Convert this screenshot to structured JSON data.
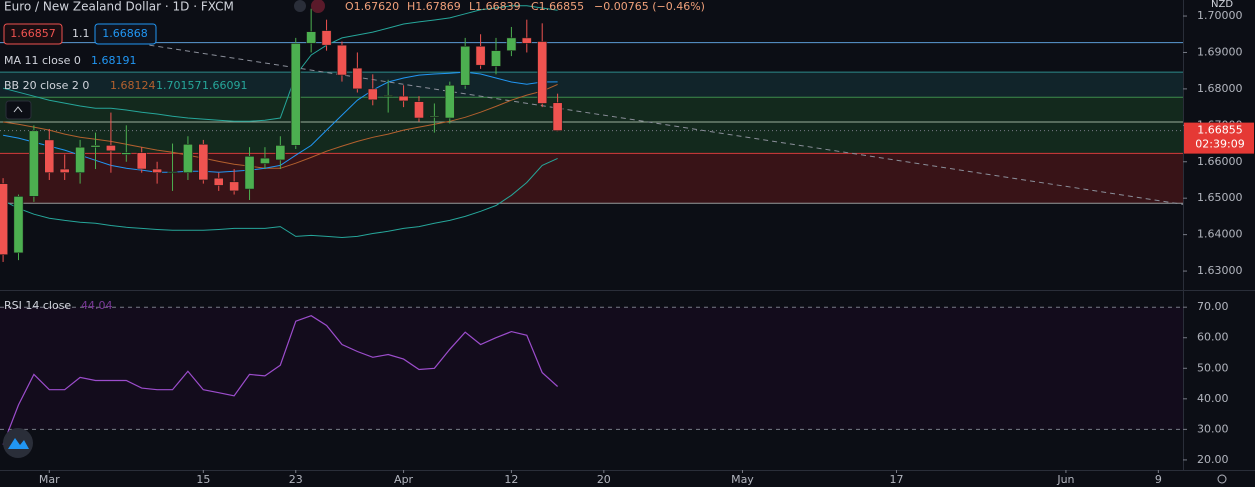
{
  "chart_data": {
    "type": "candlestick",
    "title": "Euro / New Zealand Dollar · 1D · FXCM",
    "ohlc_header": [
      "O1.67620",
      "H1.67869",
      "L1.66839",
      "C1.66855",
      "−0.00765 (−0.46%)"
    ],
    "bid": "1.66857",
    "spread": "1.1",
    "ask": "1.66868",
    "currency": "NZD",
    "last_price": {
      "value": 1.66855,
      "label": "1.66855"
    },
    "countdown": "02:39:09",
    "up_color": "#4caf50",
    "down_color": "#ef5350",
    "open": [
      1.654,
      1.635,
      1.6505,
      1.666,
      1.658,
      1.657,
      1.664,
      1.6645,
      1.662,
      1.6625,
      1.658,
      1.657,
      1.657,
      1.6648,
      1.6555,
      1.6545,
      1.6525,
      1.6595,
      1.6605,
      1.6645,
      1.6925,
      1.696,
      1.692,
      1.6857,
      1.68,
      1.678,
      1.678,
      1.6765,
      1.6722,
      1.672,
      1.681,
      1.6917,
      1.6862,
      1.6905,
      1.694,
      1.693,
      1.6762
    ],
    "high": [
      1.6555,
      1.651,
      1.67,
      1.669,
      1.662,
      1.666,
      1.668,
      1.6735,
      1.67,
      1.664,
      1.66,
      1.665,
      1.667,
      1.666,
      1.657,
      1.658,
      1.664,
      1.664,
      1.667,
      1.694,
      1.702,
      1.699,
      1.693,
      1.69,
      1.684,
      1.6825,
      1.681,
      1.678,
      1.676,
      1.682,
      1.694,
      1.695,
      1.694,
      1.697,
      1.699,
      1.698,
      1.67869
    ],
    "low": [
      1.6325,
      1.633,
      1.649,
      1.655,
      1.655,
      1.654,
      1.658,
      1.657,
      1.66,
      1.657,
      1.654,
      1.652,
      1.655,
      1.654,
      1.652,
      1.651,
      1.6495,
      1.658,
      1.658,
      1.6635,
      1.69,
      1.6905,
      1.682,
      1.679,
      1.6755,
      1.6735,
      1.675,
      1.671,
      1.668,
      1.6705,
      1.68,
      1.6855,
      1.684,
      1.689,
      1.69,
      1.675,
      1.66839
    ],
    "close": [
      1.6345,
      1.6505,
      1.6685,
      1.657,
      1.657,
      1.664,
      1.6645,
      1.663,
      1.6625,
      1.658,
      1.657,
      1.6572,
      1.6648,
      1.655,
      1.6535,
      1.652,
      1.6615,
      1.661,
      1.6645,
      1.6925,
      1.6957,
      1.692,
      1.6838,
      1.68,
      1.677,
      1.6782,
      1.6767,
      1.672,
      1.6725,
      1.681,
      1.6917,
      1.6865,
      1.6905,
      1.694,
      1.6925,
      1.676,
      1.66855
    ],
    "ylim": [
      1.6248,
      1.7044
    ],
    "yticks": [
      {
        "value": 1.7,
        "label": "1.70000"
      },
      {
        "value": 1.69,
        "label": "1.69000"
      },
      {
        "value": 1.68,
        "label": "1.68000"
      },
      {
        "value": 1.67,
        "label": "1.67000"
      },
      {
        "value": 1.66,
        "label": "1.66000"
      },
      {
        "value": 1.65,
        "label": "1.65000"
      },
      {
        "value": 1.64,
        "label": "1.64000"
      },
      {
        "value": 1.63,
        "label": "1.63000"
      }
    ],
    "xlim": [
      -0.2,
      76.6
    ],
    "xticks": [
      {
        "value": 3,
        "label": "Mar"
      },
      {
        "value": 13,
        "label": "15"
      },
      {
        "value": 19,
        "label": "23"
      },
      {
        "value": 26,
        "label": "Apr"
      },
      {
        "value": 33,
        "label": "12"
      },
      {
        "value": 39,
        "label": "20"
      },
      {
        "value": 48,
        "label": "May"
      },
      {
        "value": 58,
        "label": "17"
      },
      {
        "value": 69,
        "label": "Jun"
      },
      {
        "value": 75,
        "label": "9"
      }
    ],
    "levels": [
      {
        "value": 1.6927,
        "color": "#5b9bd5"
      },
      {
        "value": 1.6846,
        "color": "#2e8b8b"
      },
      {
        "value": 1.6777,
        "color": "#3c8c4c"
      },
      {
        "value": 1.6709,
        "color": "#9bb09b"
      },
      {
        "value": 1.6623,
        "color": "#d43b3b"
      },
      {
        "value": 1.6486,
        "color": "#9a9a9a"
      }
    ],
    "trendline": {
      "x": [
        9.5,
        76.6
      ],
      "values": [
        1.692,
        1.6483
      ],
      "color": "#8a8e99"
    },
    "ma": {
      "name": "MA 11 close 0",
      "color": "#2196f3",
      "value_label": "1.68191",
      "values": [
        1.6673,
        1.6665,
        1.6654,
        1.6643,
        1.6632,
        1.6618,
        1.6604,
        1.659,
        1.6582,
        1.6577,
        1.6571,
        1.6571,
        1.6574,
        1.6574,
        1.6571,
        1.6574,
        1.6577,
        1.6582,
        1.659,
        1.6618,
        1.6645,
        1.6687,
        1.6728,
        1.6769,
        1.6797,
        1.6819,
        1.683,
        1.6838,
        1.6841,
        1.6843,
        1.6846,
        1.6841,
        1.683,
        1.6819,
        1.6813,
        1.6819,
        1.68191
      ]
    },
    "bb": {
      "name": "BB 20 close 2 0",
      "basis": {
        "color": "#b3602e",
        "value_label": "1.68124",
        "values": [
          1.6709,
          1.6703,
          1.6695,
          1.6687,
          1.6676,
          1.6667,
          1.6662,
          1.6656,
          1.6648,
          1.664,
          1.6632,
          1.6626,
          1.6618,
          1.661,
          1.6601,
          1.6593,
          1.6588,
          1.6582,
          1.6582,
          1.6596,
          1.6612,
          1.6629,
          1.6643,
          1.6656,
          1.6667,
          1.6676,
          1.6687,
          1.6695,
          1.6703,
          1.6711,
          1.6722,
          1.6736,
          1.6752,
          1.6769,
          1.6783,
          1.6794,
          1.68124
        ]
      },
      "upper": {
        "color": "#26a69a",
        "value_label": "1.70157",
        "values": [
          1.6802,
          1.6791,
          1.678,
          1.6769,
          1.6761,
          1.6753,
          1.6747,
          1.6747,
          1.6742,
          1.6736,
          1.6731,
          1.6725,
          1.672,
          1.6717,
          1.6714,
          1.6711,
          1.6711,
          1.6714,
          1.672,
          1.6838,
          1.6893,
          1.692,
          1.694,
          1.6948,
          1.6956,
          1.6967,
          1.6978,
          1.6984,
          1.6989,
          1.6995,
          1.7006,
          1.7017,
          1.7022,
          1.7028,
          1.7028,
          1.7022,
          1.70157
        ]
      },
      "lower": {
        "color": "#26a69a",
        "value_label": "1.66091",
        "values": [
          1.6494,
          1.6472,
          1.6456,
          1.6445,
          1.6439,
          1.6434,
          1.6431,
          1.6425,
          1.642,
          1.6417,
          1.6414,
          1.6412,
          1.6412,
          1.6412,
          1.6414,
          1.6417,
          1.6417,
          1.6417,
          1.6422,
          1.6395,
          1.6398,
          1.6395,
          1.6392,
          1.6395,
          1.6403,
          1.6409,
          1.6417,
          1.6422,
          1.6431,
          1.6439,
          1.645,
          1.6464,
          1.648,
          1.6508,
          1.6543,
          1.659,
          1.66091
        ]
      }
    },
    "rsi": {
      "name": "RSI 14 close",
      "color": "#9c4dcc",
      "value_label": "44.04",
      "values": [
        25,
        38,
        48,
        43,
        43,
        47,
        46,
        46,
        46,
        43.5,
        43,
        43,
        49,
        43,
        42,
        41,
        48,
        47.5,
        51,
        65.4,
        67.2,
        64,
        57.8,
        55.5,
        53.6,
        54.5,
        53,
        49.6,
        50,
        56.2,
        61.8,
        57.8,
        60,
        62,
        60.8,
        48.6,
        44.04
      ],
      "ylim": [
        16.7,
        75.3
      ],
      "yticks": [
        {
          "value": 70,
          "label": "70.00"
        },
        {
          "value": 60,
          "label": "60.00"
        },
        {
          "value": 50,
          "label": "50.00"
        },
        {
          "value": 40,
          "label": "40.00"
        },
        {
          "value": 30,
          "label": "30.00"
        },
        {
          "value": 20,
          "label": "20.00"
        }
      ],
      "bands": [
        70,
        30
      ]
    }
  }
}
